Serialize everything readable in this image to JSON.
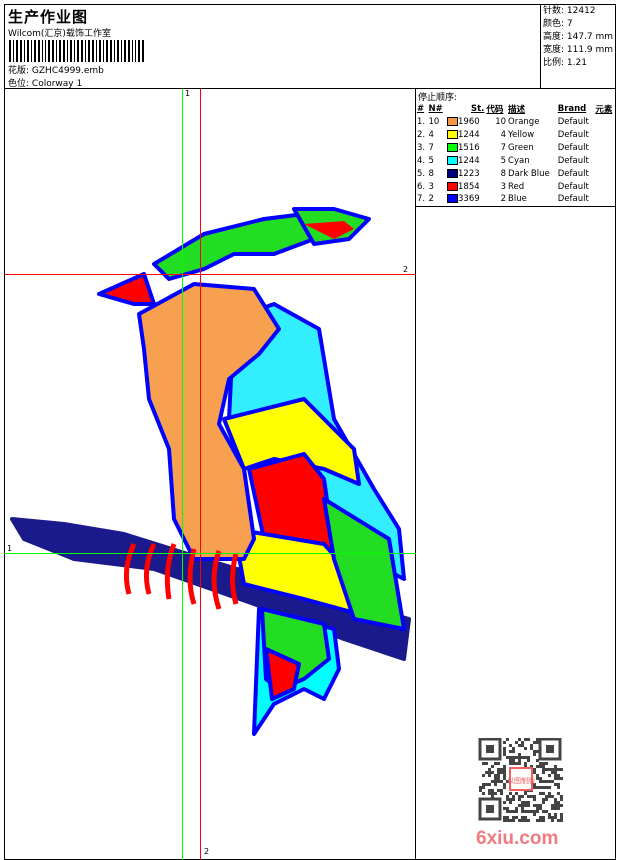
{
  "header": {
    "title": "生产作业图",
    "company": "Wilcom(汇京)载饰工作室",
    "design_label": "花版:",
    "design_value": "GZHC4999.emb",
    "colorway_label": "色位:",
    "colorway_value": "Colorway 1"
  },
  "info": {
    "stitches": "针数: 12412",
    "colors": "颜色: 7",
    "height": "高度: 147.7 mm",
    "width": "宽度: 111.9 mm",
    "scale": "比例: 1.21"
  },
  "stop_sequence": {
    "title": "停止顺序:",
    "columns": [
      "#",
      "N#",
      "St.",
      "代码",
      "描述",
      "Brand",
      "元素"
    ],
    "rows": [
      {
        "idx": "1.",
        "n": "10",
        "color": "#f79646",
        "st": "1960",
        "code": "10",
        "desc": "Orange",
        "brand": "Default"
      },
      {
        "idx": "2.",
        "n": "4",
        "color": "#ffff00",
        "st": "1244",
        "code": "4",
        "desc": "Yellow",
        "brand": "Default"
      },
      {
        "idx": "3.",
        "n": "7",
        "color": "#00ff00",
        "st": "1516",
        "code": "7",
        "desc": "Green",
        "brand": "Default"
      },
      {
        "idx": "4.",
        "n": "5",
        "color": "#00ffff",
        "st": "1244",
        "code": "5",
        "desc": "Cyan",
        "brand": "Default"
      },
      {
        "idx": "5.",
        "n": "8",
        "color": "#000080",
        "st": "1223",
        "code": "8",
        "desc": "Dark Blue",
        "brand": "Default"
      },
      {
        "idx": "6.",
        "n": "3",
        "color": "#ff0000",
        "st": "1854",
        "code": "3",
        "desc": "Red",
        "brand": "Default"
      },
      {
        "idx": "7.",
        "n": "2",
        "color": "#0000ff",
        "st": "3369",
        "code": "2",
        "desc": "Blue",
        "brand": "Default"
      }
    ]
  },
  "crosshair_labels": {
    "v1": "1",
    "v2": "2",
    "h1": "1",
    "h2": "2"
  },
  "watermark": {
    "site": "6xiu.com",
    "stamp": "以图制版"
  }
}
